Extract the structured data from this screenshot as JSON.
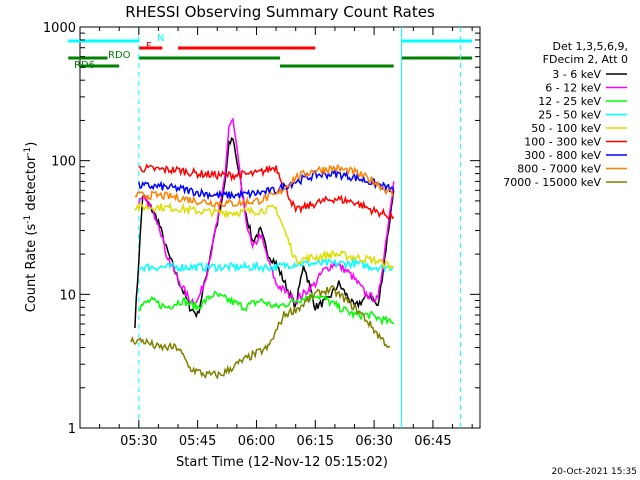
{
  "chart_data": {
    "type": "line",
    "title": "RHESSI Observing Summary Count Rates",
    "xlabel": "Start Time (12-Nov-12 05:15:02)",
    "ylabel_main": "Count Rate (s",
    "ylabel_sup1": "-1",
    "ylabel_mid": " detector",
    "ylabel_sup2": "-1",
    "ylabel_end": ")",
    "ylog": true,
    "ylim": [
      1,
      1000
    ],
    "xlim_min": [
      0,
      102
    ],
    "yticks": [
      {
        "v": 1,
        "label": "1"
      },
      {
        "v": 10,
        "label": "10"
      },
      {
        "v": 100,
        "label": "100"
      },
      {
        "v": 1000,
        "label": "1000"
      }
    ],
    "xticks": [
      {
        "v": 15,
        "label": "05:30"
      },
      {
        "v": 30,
        "label": "05:45"
      },
      {
        "v": 45,
        "label": "06:00"
      },
      {
        "v": 60,
        "label": "06:15"
      },
      {
        "v": 75,
        "label": "06:30"
      },
      {
        "v": 90,
        "label": "06:45"
      }
    ],
    "legend_header": [
      "Det 1,3,5,6,9,",
      "FDecim 2, Att 0"
    ],
    "legend_position": "right",
    "series": [
      {
        "name": "3 - 6 keV",
        "color": "#000000",
        "x": [
          14,
          16,
          18,
          20,
          22,
          25,
          28,
          30,
          32,
          34,
          36,
          37,
          38,
          39,
          40,
          42,
          44,
          46,
          48,
          50,
          55,
          57,
          60,
          63,
          66,
          70,
          72,
          74,
          76,
          80
        ],
        "y": [
          6,
          55,
          45,
          35,
          22,
          13,
          8,
          7,
          13,
          26,
          45,
          70,
          130,
          150,
          100,
          45,
          25,
          30,
          20,
          17,
          8,
          17,
          8,
          9,
          12,
          8,
          9,
          10,
          8,
          60
        ]
      },
      {
        "name": "6 - 12 keV",
        "color": "#ff00ff",
        "x": [
          15,
          17,
          20,
          22,
          25,
          28,
          30,
          32,
          34,
          36,
          37,
          38,
          39,
          40,
          42,
          44,
          46,
          48,
          50,
          55,
          60,
          62,
          65,
          68,
          70,
          73,
          76,
          80
        ],
        "y": [
          50,
          50,
          35,
          20,
          13,
          9,
          9,
          13,
          25,
          50,
          80,
          180,
          200,
          120,
          40,
          22,
          28,
          18,
          12,
          9,
          12,
          15,
          17,
          15,
          13,
          10,
          9,
          70
        ]
      },
      {
        "name": "12 - 25 keV",
        "color": "#00ff00",
        "x": [
          15,
          18,
          22,
          26,
          30,
          34,
          38,
          42,
          46,
          50,
          55,
          60,
          63,
          66,
          70,
          74,
          80
        ],
        "y": [
          8,
          9,
          8,
          9,
          8,
          10,
          9,
          8,
          9,
          8,
          9,
          10,
          9,
          8,
          7,
          7,
          6
        ]
      },
      {
        "name": "25 - 50 keV",
        "color": "#00ffff",
        "x": [
          15,
          20,
          25,
          30,
          35,
          40,
          45,
          50,
          55,
          60,
          65,
          70,
          75,
          80
        ],
        "y": [
          16,
          16,
          16,
          16,
          16,
          16,
          16,
          16,
          17,
          17,
          17,
          17,
          16,
          16
        ]
      },
      {
        "name": "50 - 100 keV",
        "color": "#dddd00",
        "x": [
          14,
          20,
          25,
          30,
          35,
          40,
          45,
          50,
          55,
          60,
          65,
          70,
          75,
          80
        ],
        "y": [
          45,
          45,
          44,
          42,
          41,
          41,
          42,
          44,
          18,
          19,
          20,
          19,
          18,
          16
        ]
      },
      {
        "name": "100 - 300 keV",
        "color": "#ff0000",
        "x": [
          15,
          20,
          25,
          30,
          35,
          40,
          45,
          50,
          55,
          60,
          65,
          70,
          75,
          80
        ],
        "y": [
          88,
          86,
          85,
          80,
          78,
          78,
          80,
          90,
          42,
          48,
          52,
          49,
          42,
          38
        ]
      },
      {
        "name": "300 - 800 keV",
        "color": "#0000ff",
        "x": [
          15,
          20,
          25,
          30,
          35,
          40,
          45,
          50,
          55,
          60,
          65,
          70,
          75,
          80
        ],
        "y": [
          65,
          64,
          62,
          58,
          55,
          55,
          57,
          60,
          70,
          78,
          80,
          75,
          68,
          60
        ]
      },
      {
        "name": "800 - 7000 keV",
        "color": "#ff8000",
        "x": [
          14,
          20,
          25,
          30,
          35,
          40,
          45,
          50,
          55,
          60,
          65,
          70,
          75,
          80
        ],
        "y": [
          55,
          55,
          53,
          50,
          48,
          48,
          50,
          55,
          75,
          85,
          88,
          82,
          70,
          55
        ]
      },
      {
        "name": "7000 - 15000 keV",
        "color": "#808000",
        "x": [
          13,
          16,
          20,
          25,
          28,
          32,
          36,
          40,
          44,
          48,
          52,
          56,
          60,
          64,
          68,
          72,
          76,
          79
        ],
        "y": [
          4.5,
          4.5,
          4,
          4,
          2.8,
          2.5,
          2.5,
          3,
          3.5,
          4,
          7,
          8,
          10,
          11,
          9,
          7,
          5,
          4
        ]
      }
    ],
    "vlines": [
      {
        "x": 15,
        "style": "dashed",
        "color": "#00ffff"
      },
      {
        "x": 82,
        "style": "solid",
        "color": "#00ffff"
      },
      {
        "x": 97,
        "style": "dashed",
        "color": "#00ffff"
      }
    ],
    "flag_bars": [
      {
        "label": "N",
        "color": "#00ffff",
        "segments": [
          [
            -3,
            15
          ],
          [
            82,
            100
          ]
        ]
      },
      {
        "label": "F",
        "color": "#ff0000",
        "segments": [
          [
            15,
            21
          ],
          [
            25,
            60
          ]
        ]
      },
      {
        "label": "RDO",
        "color": "#008000",
        "segments": [
          [
            -3,
            7
          ],
          [
            15,
            51
          ],
          [
            82,
            100
          ]
        ]
      },
      {
        "label": "RD6",
        "color": "#008000",
        "segments": [
          [
            0,
            10
          ],
          [
            51,
            80
          ]
        ]
      }
    ],
    "footer_date": "20-Oct-2021 15:35"
  }
}
